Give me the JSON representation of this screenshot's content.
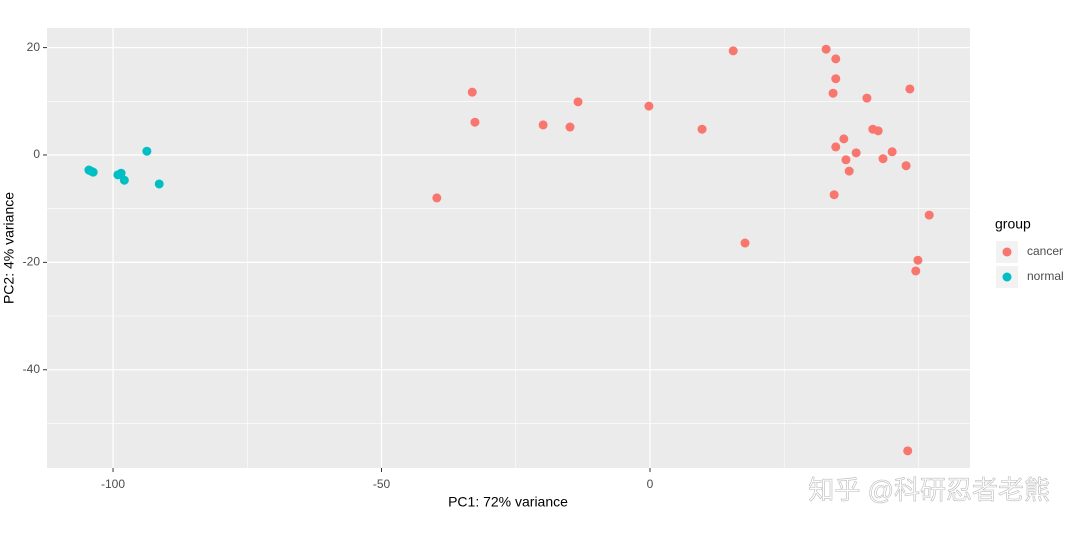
{
  "chart_data": {
    "type": "scatter",
    "xlabel": "PC1: 72% variance",
    "ylabel": "PC2: 4% variance",
    "legend_title": "group",
    "legend": "right",
    "xlim": [
      -112.3,
      59.6
    ],
    "ylim": [
      -58.3,
      23.65
    ],
    "xticks": [
      -100,
      -50,
      0
    ],
    "yticks": [
      20,
      0,
      -20,
      -40
    ],
    "x_minor_grid": [
      -75,
      -25,
      25,
      50
    ],
    "y_minor_grid": [
      10,
      -10,
      -30,
      -50
    ],
    "grid": true,
    "series": [
      {
        "name": "cancer",
        "color": "#F8766D",
        "x": [
          15.5,
          32.8,
          34.6,
          34.6,
          34.1,
          48.4,
          40.4,
          -13.4,
          -33.1,
          -32.6,
          -19.9,
          -14.9,
          -0.2,
          9.7,
          41.5,
          42.5,
          36.1,
          34.6,
          38.4,
          45.1,
          36.5,
          43.4,
          47.7,
          37.1,
          34.3,
          -39.7,
          52.0,
          17.7,
          49.9,
          49.5,
          48.0
        ],
        "values": [
          19.4,
          19.7,
          17.9,
          14.2,
          11.5,
          12.3,
          10.6,
          9.9,
          11.7,
          6.1,
          5.6,
          5.2,
          9.1,
          4.8,
          4.8,
          4.5,
          3.0,
          1.5,
          0.4,
          0.6,
          -0.9,
          -0.7,
          -2.0,
          -3.0,
          -7.4,
          -8.0,
          -11.2,
          -16.4,
          -19.6,
          -21.6,
          -55.1
        ]
      },
      {
        "name": "normal",
        "color": "#00BFC4",
        "x": [
          -104.5,
          -103.7,
          -104.1,
          -99.1,
          -98.5,
          -97.9,
          -93.7,
          -91.4
        ],
        "values": [
          -2.8,
          -3.2,
          -3.0,
          -3.7,
          -3.4,
          -4.7,
          0.7,
          -5.4
        ]
      }
    ]
  },
  "watermark": "知乎 @科研忍者老熊"
}
